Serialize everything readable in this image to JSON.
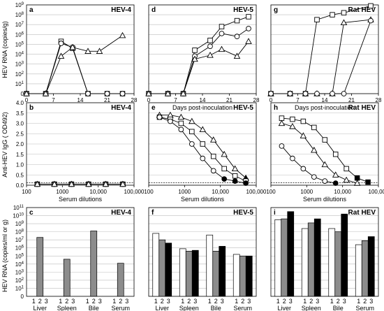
{
  "shared": {
    "rna_time_ylabel": "HEV RNA (copies/g)",
    "igg_ylabel": "Anti-HEV IgG ( OD492)",
    "tissue_ylabel": "HEV RNA (copies/ml or g)",
    "days_xlabel": "Days post-inoculation",
    "dilution_xlabel": "Serum dilutions",
    "rat_numbers": [
      "1",
      "2",
      "3"
    ],
    "tissues": [
      "Liver",
      "Spleen",
      "Bile",
      "Serum"
    ]
  },
  "chart_data": [
    {
      "id": "a",
      "type": "line",
      "title": "HEV-4",
      "letter": "a",
      "xlabel": "",
      "ylabel": "HEV RNA (copies/g)",
      "xlim": [
        0,
        28
      ],
      "ylim": [
        0,
        9
      ],
      "y_log_exponent_labels": true,
      "xticks": [
        0,
        7,
        14,
        21,
        28
      ],
      "yticks": [
        0,
        1,
        2,
        3,
        4,
        5,
        6,
        7,
        8,
        9
      ],
      "series": [
        {
          "marker": "square",
          "x": [
            0,
            5,
            9,
            12,
            16,
            21,
            25
          ],
          "y": [
            0,
            0,
            5.3,
            4.6,
            0,
            0,
            0
          ]
        },
        {
          "marker": "circle",
          "x": [
            0,
            5,
            9,
            12,
            16,
            21,
            25
          ],
          "y": [
            0,
            0,
            5.1,
            4.7,
            0,
            0,
            0
          ]
        },
        {
          "marker": "triangle",
          "x": [
            0,
            5,
            9,
            12,
            16,
            19,
            25
          ],
          "y": [
            0,
            0,
            3.8,
            4.7,
            4.3,
            4.3,
            5.9
          ]
        }
      ]
    },
    {
      "id": "d",
      "type": "line",
      "title": "HEV-5",
      "letter": "d",
      "xlabel": "Days post-inoculation",
      "ylabel": "",
      "xlim": [
        0,
        28
      ],
      "ylim": [
        0,
        9
      ],
      "xticks": [
        0,
        7,
        14,
        21,
        28
      ],
      "yticks": [
        0,
        1,
        2,
        3,
        4,
        5,
        6,
        7,
        8,
        9
      ],
      "series": [
        {
          "marker": "square",
          "x": [
            0,
            5,
            9,
            12,
            16,
            19,
            23,
            26
          ],
          "y": [
            0,
            0,
            0,
            4.4,
            5.4,
            6.8,
            7.4,
            7.8
          ]
        },
        {
          "marker": "circle",
          "x": [
            0,
            5,
            9,
            12,
            16,
            19,
            23,
            26
          ],
          "y": [
            0,
            0,
            0,
            3.8,
            4.8,
            6.1,
            5.8,
            6.6
          ]
        },
        {
          "marker": "triangle",
          "x": [
            0,
            5,
            9,
            12,
            16,
            19,
            23,
            26
          ],
          "y": [
            0,
            0,
            0,
            3.5,
            3.9,
            4.5,
            3.8,
            5.3
          ]
        }
      ]
    },
    {
      "id": "g",
      "type": "line",
      "title": "Rat HEV",
      "letter": "g",
      "xlabel": "",
      "ylabel": "",
      "xlim": [
        0,
        28
      ],
      "ylim": [
        0,
        9
      ],
      "xticks": [
        0,
        7,
        14,
        21,
        28
      ],
      "yticks": [
        0,
        1,
        2,
        3,
        4,
        5,
        6,
        7,
        8,
        9
      ],
      "series": [
        {
          "marker": "square",
          "x": [
            0,
            5,
            9,
            12,
            16,
            19,
            26
          ],
          "y": [
            0,
            0,
            0,
            7.5,
            8.0,
            8.2,
            8.9
          ]
        },
        {
          "marker": "triangle",
          "x": [
            0,
            5,
            9,
            12,
            16,
            19,
            26
          ],
          "y": [
            0,
            0,
            0,
            0,
            0,
            7.2,
            7.5
          ]
        },
        {
          "marker": "circle",
          "x": [
            0,
            5,
            9,
            12,
            16,
            19,
            26
          ],
          "y": [
            0,
            0,
            0,
            0,
            0,
            0,
            7.4
          ]
        }
      ]
    },
    {
      "id": "b",
      "type": "line",
      "title": "HEV-4",
      "letter": "b",
      "xlabel": "",
      "ylabel": "Anti-HEV IgG ( OD492)",
      "x_log": true,
      "xlim": [
        100,
        100000
      ],
      "ylim": [
        0,
        4
      ],
      "xticks": [
        100,
        1000,
        10000,
        100000
      ],
      "xticklabels": [
        "100",
        "1000",
        "10,000",
        "100,000"
      ],
      "yticks": [
        0,
        0.5,
        1,
        1.5,
        2,
        2.5,
        3,
        3.5,
        4
      ],
      "yticklabels": [
        "0.0",
        "0.5",
        "1.0",
        "1.5",
        "2.0",
        "2.5",
        "3.0",
        "3.5",
        "4.0"
      ],
      "cutoff": 0.12,
      "series": [
        {
          "marker": "square",
          "x": [
            200,
            600,
            1800,
            5400,
            16200,
            48600
          ],
          "y": [
            0.05,
            0.05,
            0.05,
            0.05,
            0.05,
            0.05
          ]
        },
        {
          "marker": "circle",
          "x": [
            200,
            600,
            1800,
            5400,
            16200,
            48600
          ],
          "y": [
            0.05,
            0.05,
            0.05,
            0.05,
            0.05,
            0.05
          ]
        },
        {
          "marker": "triangle",
          "x": [
            200,
            600,
            1800,
            5400,
            16200,
            48600
          ],
          "y": [
            0.05,
            0.05,
            0.05,
            0.05,
            0.05,
            0.05
          ]
        }
      ]
    },
    {
      "id": "e",
      "type": "line",
      "title": "HEV-5",
      "letter": "e",
      "xlabel": "Serum dilutions",
      "ylabel": "",
      "x_log": true,
      "xlim": [
        100,
        100000
      ],
      "ylim": [
        0,
        4
      ],
      "xticks": [
        100,
        1000,
        10000,
        100000
      ],
      "xticklabels": [
        "100",
        "1000",
        "10,000",
        "100,000"
      ],
      "yticks": [
        0,
        0.5,
        1,
        1.5,
        2,
        2.5,
        3,
        3.5,
        4
      ],
      "cutoff": 0.12,
      "series": [
        {
          "marker": "triangle",
          "x": [
            200,
            400,
            800,
            1600,
            3200,
            6400,
            12800,
            25600,
            51200
          ],
          "y": [
            3.4,
            3.4,
            3.3,
            3.1,
            2.7,
            2.2,
            1.5,
            0.8,
            0.35
          ],
          "filled_from": 8
        },
        {
          "marker": "square",
          "x": [
            200,
            400,
            800,
            1600,
            3200,
            6400,
            12800,
            25600,
            51200
          ],
          "y": [
            3.3,
            3.2,
            3.0,
            2.6,
            2.0,
            1.4,
            0.8,
            0.45,
            0.2
          ]
        },
        {
          "marker": "circle",
          "x": [
            200,
            400,
            800,
            1600,
            3200,
            6400,
            12800,
            25600,
            51200
          ],
          "y": [
            3.3,
            3.1,
            2.7,
            2.0,
            1.3,
            0.7,
            0.3,
            0.2,
            0.1
          ],
          "filled_from": 6
        }
      ]
    },
    {
      "id": "h",
      "type": "line",
      "title": "Rat HEV",
      "letter": "h",
      "xlabel": "",
      "ylabel": "",
      "x_log": true,
      "xlim": [
        100,
        100000
      ],
      "ylim": [
        0,
        4
      ],
      "xticks": [
        100,
        1000,
        10000,
        100000
      ],
      "xticklabels": [
        "100",
        "1000",
        "10,000",
        "100,000"
      ],
      "yticks": [
        0,
        0.5,
        1,
        1.5,
        2,
        2.5,
        3,
        3.5,
        4
      ],
      "cutoff": 0.12,
      "series": [
        {
          "marker": "square",
          "x": [
            200,
            400,
            800,
            1600,
            3200,
            6400,
            12800,
            25600,
            51200
          ],
          "y": [
            3.25,
            3.2,
            3.1,
            2.8,
            2.2,
            1.5,
            0.8,
            0.35,
            0.15
          ],
          "filled_from": 7
        },
        {
          "marker": "triangle",
          "x": [
            200,
            400,
            800,
            1600,
            3200,
            6400,
            12800,
            25600
          ],
          "y": [
            3.0,
            2.85,
            2.4,
            1.7,
            1.0,
            0.5,
            0.25,
            0.1
          ]
        },
        {
          "marker": "circle",
          "x": [
            200,
            400,
            800,
            1600,
            3200,
            6400
          ],
          "y": [
            1.9,
            1.3,
            0.8,
            0.4,
            0.2,
            0.1
          ],
          "filled_from": 5
        }
      ]
    },
    {
      "id": "c",
      "type": "bar",
      "title": "HEV-4",
      "letter": "c",
      "xlabel": "",
      "ylabel": "HEV RNA (copies/ml or g)",
      "ylim": [
        0,
        11
      ],
      "y_log_exponent_labels": true,
      "yticks": [
        0,
        1,
        2,
        3,
        4,
        5,
        6,
        7,
        8,
        9,
        10,
        11
      ],
      "categories": [
        "Liver",
        "Spleen",
        "Bile",
        "Serum"
      ],
      "series": [
        {
          "name": "1",
          "color": "#ffffff",
          "values": [
            null,
            null,
            null,
            null
          ]
        },
        {
          "name": "2",
          "color": "#8c8c8c",
          "values": [
            7.3,
            4.6,
            8.1,
            4.1
          ]
        },
        {
          "name": "3",
          "color": "#000000",
          "values": [
            null,
            null,
            null,
            null
          ]
        }
      ]
    },
    {
      "id": "f",
      "type": "bar",
      "title": "HEV-5",
      "letter": "f",
      "xlabel": "",
      "ylabel": "",
      "ylim": [
        0,
        11
      ],
      "yticks": [
        0,
        1,
        2,
        3,
        4,
        5,
        6,
        7,
        8,
        9,
        10,
        11
      ],
      "categories": [
        "Liver",
        "Spleen",
        "Bile",
        "Serum"
      ],
      "series": [
        {
          "name": "1",
          "color": "#ffffff",
          "values": [
            7.8,
            5.9,
            7.6,
            5.2
          ]
        },
        {
          "name": "2",
          "color": "#8c8c8c",
          "values": [
            7.0,
            5.6,
            5.6,
            5.0
          ]
        },
        {
          "name": "3",
          "color": "#000000",
          "values": [
            6.6,
            5.7,
            6.2,
            5.0
          ]
        }
      ]
    },
    {
      "id": "i",
      "type": "bar",
      "title": "Rat HEV",
      "letter": "i",
      "xlabel": "",
      "ylabel": "",
      "ylim": [
        0,
        11
      ],
      "yticks": [
        0,
        1,
        2,
        3,
        4,
        5,
        6,
        7,
        8,
        9,
        10,
        11
      ],
      "categories": [
        "Liver",
        "Spleen",
        "Bile",
        "Serum"
      ],
      "series": [
        {
          "name": "1",
          "color": "#ffffff",
          "values": [
            9.5,
            8.4,
            8.4,
            6.4
          ]
        },
        {
          "name": "2",
          "color": "#8c8c8c",
          "values": [
            9.6,
            9.1,
            8.0,
            6.9
          ]
        },
        {
          "name": "3",
          "color": "#000000",
          "values": [
            10.5,
            9.6,
            10.2,
            7.4
          ]
        }
      ]
    }
  ]
}
